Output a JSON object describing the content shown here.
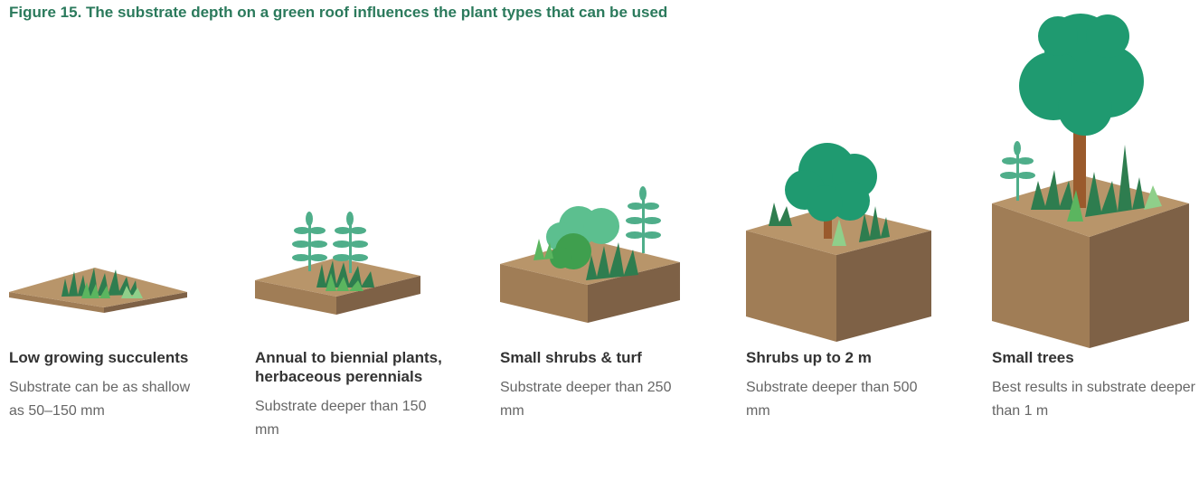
{
  "title": "Figure 15. The substrate depth on a green roof influences the plant types that can be used",
  "columns": [
    {
      "heading": "Low growing succulents",
      "description": "Substrate can be as shallow as 50–150 mm"
    },
    {
      "heading": "Annual to biennial plants, herbaceous perennials",
      "description": "Substrate deeper than 150 mm"
    },
    {
      "heading": "Small shrubs & turf",
      "description": "Substrate deeper than 250 mm"
    },
    {
      "heading": "Shrubs up to 2 m",
      "description": "Substrate deeper than 500 mm"
    },
    {
      "heading": "Small trees",
      "description": "Best results in substrate deeper than 1 m"
    }
  ]
}
